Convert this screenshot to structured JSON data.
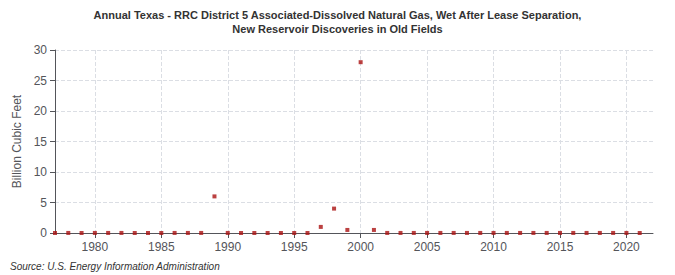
{
  "chart_data": {
    "type": "scatter",
    "title": "Annual Texas - RRC District 5 Associated-Dissolved Natural Gas, Wet After Lease Separation,",
    "subtitle": "New Reservoir Discoveries in Old Fields",
    "ylabel": "Billion Cubic Feet",
    "annotations": [
      "Source: U.S. Energy Information Administration"
    ],
    "x": [
      1977,
      1978,
      1979,
      1980,
      1981,
      1982,
      1983,
      1984,
      1985,
      1986,
      1987,
      1988,
      1989,
      1990,
      1991,
      1992,
      1993,
      1994,
      1995,
      1996,
      1997,
      1998,
      1999,
      2000,
      2001,
      2002,
      2003,
      2004,
      2005,
      2006,
      2007,
      2008,
      2009,
      2010,
      2011,
      2012,
      2013,
      2014,
      2015,
      2016,
      2017,
      2018,
      2019,
      2020,
      2021
    ],
    "values": [
      0.0,
      0.01,
      0.0,
      0.01,
      0.01,
      0.01,
      0.0,
      0.0,
      0.0,
      0.01,
      0.01,
      0.01,
      6.0,
      0.01,
      0.0,
      0.0,
      0.0,
      0.0,
      0.0,
      0.0,
      1.0,
      4.0,
      0.5,
      28.0,
      0.5,
      0.01,
      0.01,
      0.01,
      0.01,
      0.01,
      0.01,
      0.01,
      0.01,
      0.01,
      0.01,
      0.01,
      0.01,
      0.01,
      0.01,
      0.01,
      0.01,
      0.01,
      0.01,
      0.01,
      0.0
    ],
    "color": "#aa1111",
    "marker": "square",
    "xlim": [
      1977,
      2022
    ],
    "xticks": [
      1980,
      1985,
      1990,
      1995,
      2000,
      2005,
      2010,
      2015,
      2020
    ],
    "ylim": [
      0,
      30
    ],
    "yticks": [
      0,
      5,
      10,
      15,
      20,
      25,
      30
    ],
    "grid": true
  }
}
